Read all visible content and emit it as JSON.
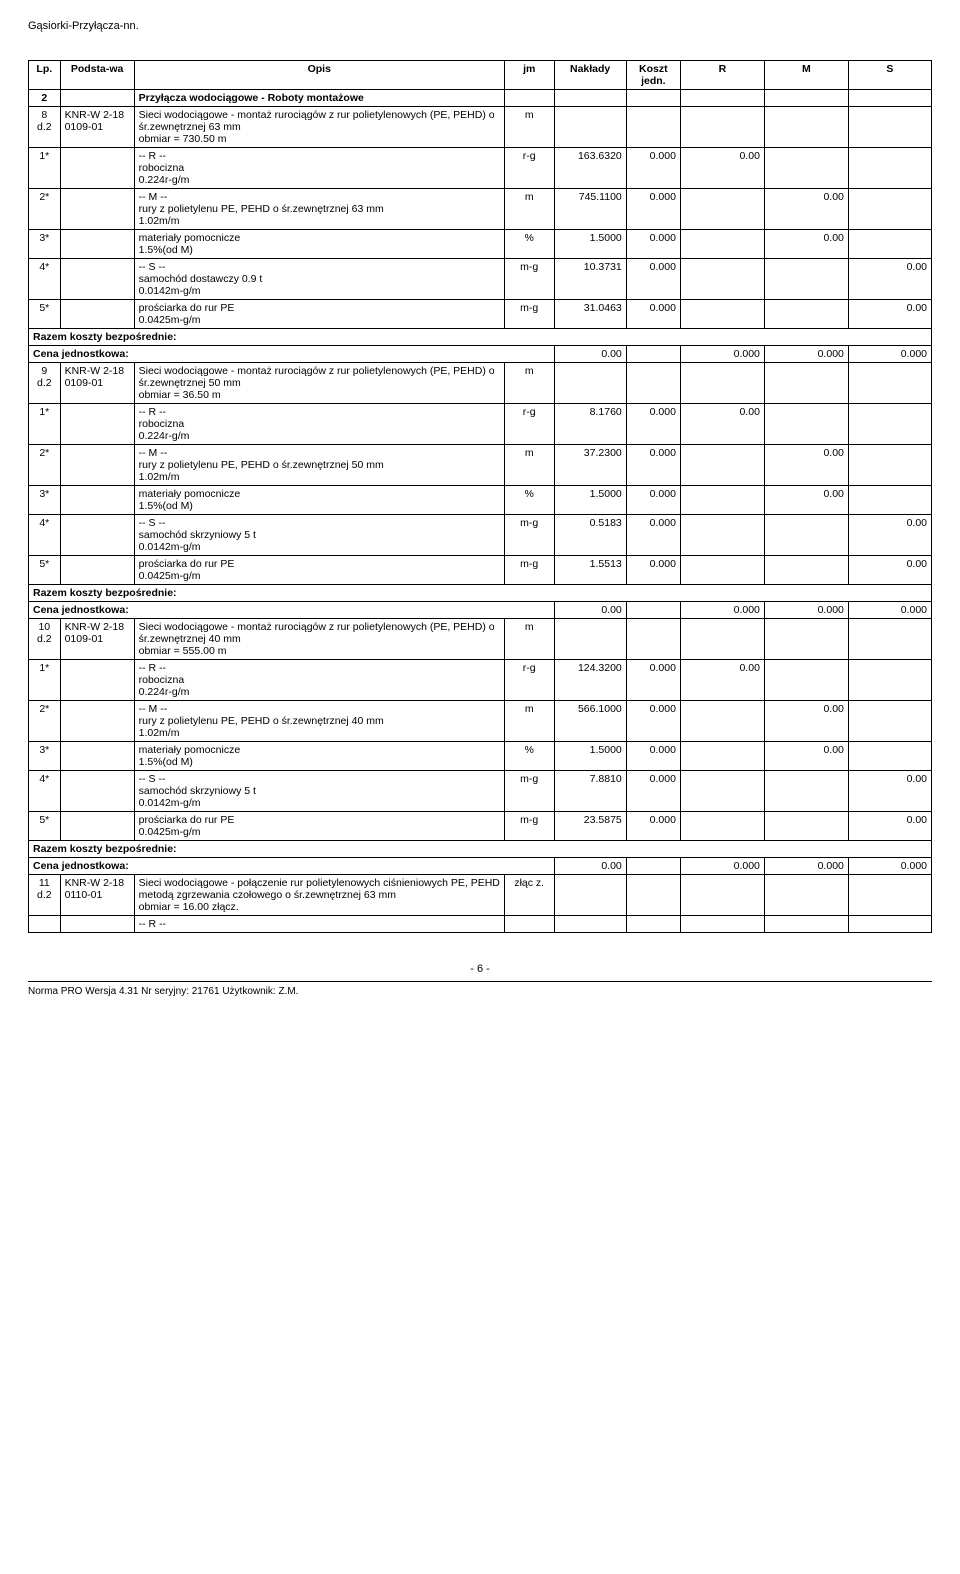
{
  "doc_title": "Gąsiorki-Przyłącza-nn.",
  "columns": {
    "lp": "Lp.",
    "podstawa": "Podsta-wa",
    "opis": "Opis",
    "jm": "jm",
    "naklady": "Nakłady",
    "koszt": "Koszt jedn.",
    "r": "R",
    "m": "M",
    "s": "S"
  },
  "section": {
    "num": "2",
    "title": "Przyłącza wodociągowe - Roboty montażowe"
  },
  "items": [
    {
      "lp": "8 d.2",
      "pod": "KNR-W 2-18 0109-01",
      "opis": "Sieci wodociągowe - montaż rurociągów z rur polietylenowych (PE, PEHD) o śr.zewnętrznej 63 mm\nobmiar  = 730.50 m",
      "jm": "m",
      "sub": [
        {
          "idx": "1*",
          "opis_pre": "-- R --",
          "opis": "robocizna\n0.224r-g/m",
          "jm": "r-g",
          "nak": "163.6320",
          "kos": "0.000",
          "r": "0.00"
        },
        {
          "idx": "2*",
          "opis_pre": "-- M --",
          "opis": "rury z polietylenu PE, PEHD o śr.zewnętrznej 63 mm\n1.02m/m",
          "jm": "m",
          "nak": "745.1100",
          "kos": "0.000",
          "m": "0.00"
        },
        {
          "idx": "3*",
          "opis": "materiały pomocnicze\n1.5%(od M)",
          "jm": "%",
          "nak": "1.5000",
          "kos": "0.000",
          "m": "0.00"
        },
        {
          "idx": "4*",
          "opis_pre": "-- S --",
          "opis": "samochód dostawczy 0.9 t\n0.0142m-g/m",
          "jm": "m-g",
          "nak": "10.3731",
          "kos": "0.000",
          "s": "0.00"
        },
        {
          "idx": "5*",
          "opis": "prościarka do rur PE\n0.0425m-g/m",
          "jm": "m-g",
          "nak": "31.0463",
          "kos": "0.000",
          "s": "0.00"
        }
      ]
    },
    {
      "lp": "9 d.2",
      "pod": "KNR-W 2-18 0109-01",
      "opis": "Sieci wodociągowe - montaż rurociągów z rur polietylenowych (PE, PEHD) o śr.zewnętrznej 50 mm\nobmiar  = 36.50 m",
      "jm": "m",
      "sub": [
        {
          "idx": "1*",
          "opis_pre": "-- R --",
          "opis": "robocizna\n0.224r-g/m",
          "jm": "r-g",
          "nak": "8.1760",
          "kos": "0.000",
          "r": "0.00"
        },
        {
          "idx": "2*",
          "opis_pre": "-- M --",
          "opis": "rury z polietylenu PE, PEHD o śr.zewnętrznej 50 mm\n1.02m/m",
          "jm": "m",
          "nak": "37.2300",
          "kos": "0.000",
          "m": "0.00"
        },
        {
          "idx": "3*",
          "opis": "materiały pomocnicze\n1.5%(od M)",
          "jm": "%",
          "nak": "1.5000",
          "kos": "0.000",
          "m": "0.00"
        },
        {
          "idx": "4*",
          "opis_pre": "-- S --",
          "opis": "samochód skrzyniowy 5 t\n0.0142m-g/m",
          "jm": "m-g",
          "nak": "0.5183",
          "kos": "0.000",
          "s": "0.00"
        },
        {
          "idx": "5*",
          "opis": "prościarka do rur PE\n0.0425m-g/m",
          "jm": "m-g",
          "nak": "1.5513",
          "kos": "0.000",
          "s": "0.00"
        }
      ]
    },
    {
      "lp": "10 d.2",
      "pod": "KNR-W 2-18 0109-01",
      "opis": "Sieci wodociągowe - montaż rurociągów z rur polietylenowych (PE, PEHD) o śr.zewnętrznej 40 mm\nobmiar  = 555.00 m",
      "jm": "m",
      "sub": [
        {
          "idx": "1*",
          "opis_pre": "-- R --",
          "opis": "robocizna\n0.224r-g/m",
          "jm": "r-g",
          "nak": "124.3200",
          "kos": "0.000",
          "r": "0.00"
        },
        {
          "idx": "2*",
          "opis_pre": "-- M --",
          "opis": "rury z polietylenu PE, PEHD o śr.zewnętrznej 40 mm\n1.02m/m",
          "jm": "m",
          "nak": "566.1000",
          "kos": "0.000",
          "m": "0.00"
        },
        {
          "idx": "3*",
          "opis": "materiały pomocnicze\n1.5%(od M)",
          "jm": "%",
          "nak": "1.5000",
          "kos": "0.000",
          "m": "0.00"
        },
        {
          "idx": "4*",
          "opis_pre": "-- S --",
          "opis": "samochód skrzyniowy 5 t\n0.0142m-g/m",
          "jm": "m-g",
          "nak": "7.8810",
          "kos": "0.000",
          "s": "0.00"
        },
        {
          "idx": "5*",
          "opis": "prościarka do rur PE\n0.0425m-g/m",
          "jm": "m-g",
          "nak": "23.5875",
          "kos": "0.000",
          "s": "0.00"
        }
      ]
    },
    {
      "lp": "11 d.2",
      "pod": "KNR-W 2-18 0110-01",
      "opis": "Sieci wodociągowe - połączenie rur polietylenowych ciśnieniowych PE, PEHD metodą zgrzewania czołowego o śr.zewnętrznej 63 mm\nobmiar  = 16.00 złącz.",
      "jm": "złąc z.",
      "sub": [
        {
          "opis_pre": "-- R --"
        }
      ],
      "no_trailer": true
    }
  ],
  "razem": "Razem koszty bezpośrednie:",
  "cena": "Cena jednostkowa:",
  "cena_vals": {
    "nak": "0.00",
    "r": "0.000",
    "m": "0.000",
    "s": "0.000"
  },
  "page_number": "- 6 -",
  "footer": "Norma PRO Wersja 4.31 Nr seryjny: 21761 Użytkownik: Z.M."
}
